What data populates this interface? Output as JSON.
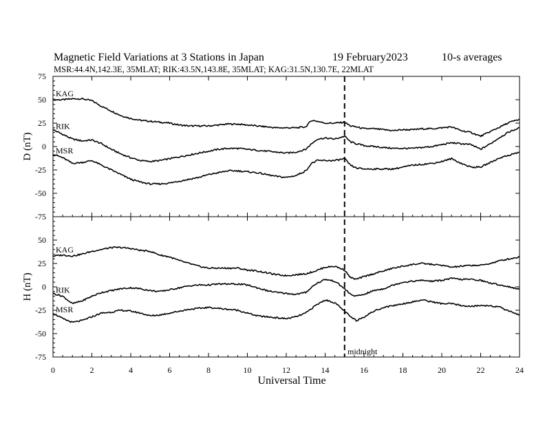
{
  "header": {
    "title": "Magnetic Field Variations at 3 Stations in Japan",
    "date": "19 February2023",
    "averaging": "10-s averages",
    "stations": "MSR:44.4N,142.3E, 35MLAT;  RIK:43.5N,143.8E, 35MLAT;  KAG:31.5N,130.7E, 22MLAT"
  },
  "chart_data": [
    {
      "type": "line",
      "panel": "D",
      "ylabel": "D (nT)",
      "xlabel": "Universal Time",
      "xlim": [
        0,
        24
      ],
      "ylim": [
        -75,
        75
      ],
      "xticks": [
        0,
        2,
        4,
        6,
        8,
        10,
        12,
        14,
        16,
        18,
        20,
        22,
        24
      ],
      "yticks": [
        75,
        50,
        25,
        0,
        -25,
        -50,
        -75
      ],
      "series": [
        {
          "name": "KAG",
          "x": [
            0,
            0.5,
            1,
            1.5,
            2,
            2.5,
            3,
            3.5,
            4,
            4.5,
            5,
            5.5,
            6,
            6.5,
            7,
            7.5,
            8,
            8.5,
            9,
            9.5,
            10,
            10.5,
            11,
            11.5,
            12,
            12.5,
            13,
            13.3,
            13.6,
            14,
            14.5,
            15,
            15.3,
            15.6,
            16,
            16.5,
            17,
            17.5,
            18,
            18.5,
            19,
            19.5,
            20,
            20.5,
            21,
            21.5,
            22,
            22.5,
            23,
            23.5,
            24
          ],
          "values": [
            50,
            50,
            51,
            51,
            49,
            43,
            38,
            33,
            30,
            28,
            27,
            26,
            25,
            23,
            22,
            22,
            22,
            23,
            24,
            24,
            23,
            22,
            21,
            20,
            20,
            20,
            21,
            28,
            27,
            25,
            25,
            26,
            22,
            21,
            19,
            19,
            18,
            17,
            18,
            18,
            19,
            19,
            20,
            21,
            17,
            15,
            11,
            16,
            21,
            26,
            29
          ]
        },
        {
          "name": "RIK",
          "x": [
            0,
            0.5,
            1,
            1.5,
            2,
            2.5,
            3,
            3.5,
            4,
            4.5,
            5,
            5.5,
            6,
            6.5,
            7,
            7.5,
            8,
            8.5,
            9,
            9.5,
            10,
            10.5,
            11,
            11.5,
            12,
            12.5,
            13,
            13.3,
            13.6,
            14,
            14.5,
            15,
            15.3,
            15.6,
            16,
            16.5,
            17,
            17.5,
            18,
            18.5,
            19,
            19.5,
            20,
            20.5,
            21,
            21.5,
            22,
            22.5,
            23,
            23.5,
            24
          ],
          "values": [
            18,
            13,
            8,
            6,
            7,
            3,
            -3,
            -8,
            -12,
            -15,
            -16,
            -15,
            -13,
            -11,
            -9,
            -7,
            -5,
            -3,
            -2,
            -2,
            -3,
            -4,
            -5,
            -6,
            -7,
            -6,
            -3,
            3,
            8,
            9,
            8,
            11,
            5,
            3,
            1,
            0,
            -1,
            -2,
            -2,
            -2,
            -1,
            0,
            2,
            4,
            3,
            2,
            -3,
            3,
            10,
            16,
            20
          ]
        },
        {
          "name": "MSR",
          "x": [
            0,
            0.5,
            1,
            1.5,
            2,
            2.5,
            3,
            3.5,
            4,
            4.5,
            5,
            5.5,
            6,
            6.5,
            7,
            7.5,
            8,
            8.5,
            9,
            9.5,
            10,
            10.5,
            11,
            11.5,
            12,
            12.5,
            13,
            13.3,
            13.6,
            14,
            14.5,
            15,
            15.3,
            15.6,
            16,
            16.5,
            17,
            17.5,
            18,
            18.5,
            19,
            19.5,
            20,
            20.5,
            21,
            21.5,
            22,
            22.5,
            23,
            23.5,
            24
          ],
          "values": [
            -8,
            -12,
            -18,
            -17,
            -15,
            -20,
            -25,
            -30,
            -35,
            -38,
            -40,
            -40,
            -39,
            -37,
            -35,
            -33,
            -30,
            -28,
            -26,
            -26,
            -27,
            -28,
            -30,
            -32,
            -33,
            -31,
            -26,
            -18,
            -15,
            -15,
            -15,
            -13,
            -20,
            -23,
            -24,
            -24,
            -24,
            -24,
            -22,
            -20,
            -19,
            -18,
            -16,
            -13,
            -18,
            -22,
            -22,
            -17,
            -12,
            -9,
            -6
          ]
        }
      ]
    },
    {
      "type": "line",
      "panel": "H",
      "ylabel": "H (nT)",
      "xlabel": "Universal Time",
      "xlim": [
        0,
        24
      ],
      "ylim": [
        -75,
        75
      ],
      "xticks": [
        0,
        2,
        4,
        6,
        8,
        10,
        12,
        14,
        16,
        18,
        20,
        22,
        24
      ],
      "yticks": [
        50,
        25,
        0,
        -25,
        -50,
        -75
      ],
      "series": [
        {
          "name": "KAG",
          "x": [
            0,
            0.5,
            1,
            1.5,
            2,
            2.5,
            3,
            3.5,
            4,
            4.5,
            5,
            5.5,
            6,
            6.5,
            7,
            7.5,
            8,
            8.5,
            9,
            9.5,
            10,
            10.5,
            11,
            11.5,
            12,
            12.5,
            13,
            13.5,
            14,
            14.5,
            15,
            15.3,
            15.6,
            16,
            16.5,
            17,
            17.5,
            18,
            18.5,
            19,
            19.5,
            20,
            20.5,
            21,
            21.5,
            22,
            22.5,
            23,
            23.5,
            24
          ],
          "values": [
            33,
            34,
            33,
            35,
            38,
            40,
            42,
            42,
            41,
            39,
            38,
            34,
            32,
            28,
            25,
            22,
            20,
            20,
            20,
            20,
            18,
            17,
            15,
            13,
            12,
            13,
            14,
            17,
            21,
            22,
            18,
            10,
            8,
            11,
            14,
            17,
            20,
            22,
            24,
            25,
            24,
            23,
            21,
            22,
            23,
            23,
            25,
            28,
            30,
            32
          ]
        },
        {
          "name": "RIK",
          "x": [
            0,
            0.5,
            1,
            1.5,
            2,
            2.5,
            3,
            3.5,
            4,
            4.5,
            5,
            5.5,
            6,
            6.5,
            7,
            7.5,
            8,
            8.5,
            9,
            9.5,
            10,
            10.5,
            11,
            11.5,
            12,
            12.5,
            13,
            13.5,
            14,
            14.5,
            15,
            15.3,
            15.6,
            16,
            16.5,
            17,
            17.5,
            18,
            18.5,
            19,
            19.5,
            20,
            20.5,
            21,
            21.5,
            22,
            22.5,
            23,
            23.5,
            24
          ],
          "values": [
            -7,
            -10,
            -18,
            -15,
            -10,
            -6,
            -4,
            -2,
            -1,
            -2,
            -4,
            -5,
            -3,
            -1,
            1,
            2,
            2,
            3,
            3,
            3,
            2,
            -1,
            -4,
            -6,
            -7,
            -8,
            -6,
            3,
            8,
            6,
            -2,
            -8,
            -10,
            -8,
            -4,
            -2,
            2,
            5,
            6,
            7,
            6,
            7,
            9,
            8,
            8,
            7,
            4,
            2,
            0,
            -3
          ]
        },
        {
          "name": "MSR",
          "x": [
            0,
            0.5,
            1,
            1.5,
            2,
            2.5,
            3,
            3.5,
            4,
            4.5,
            5,
            5.5,
            6,
            6.5,
            7,
            7.5,
            8,
            8.5,
            9,
            9.5,
            10,
            10.5,
            11,
            11.5,
            12,
            12.5,
            13,
            13.5,
            14,
            14.5,
            15,
            15.3,
            15.6,
            16,
            16.5,
            17,
            17.5,
            18,
            18.5,
            19,
            19.5,
            20,
            20.5,
            21,
            21.5,
            22,
            22.5,
            23,
            23.5,
            24
          ],
          "values": [
            -28,
            -34,
            -38,
            -36,
            -32,
            -28,
            -27,
            -25,
            -26,
            -28,
            -31,
            -30,
            -28,
            -26,
            -24,
            -23,
            -22,
            -23,
            -24,
            -25,
            -28,
            -31,
            -32,
            -33,
            -34,
            -32,
            -28,
            -20,
            -14,
            -17,
            -26,
            -32,
            -36,
            -32,
            -26,
            -22,
            -20,
            -18,
            -16,
            -14,
            -16,
            -18,
            -18,
            -20,
            -21,
            -20,
            -20,
            -22,
            -26,
            -30
          ]
        }
      ]
    }
  ],
  "annotation": {
    "x": 15,
    "label": "midnight"
  }
}
